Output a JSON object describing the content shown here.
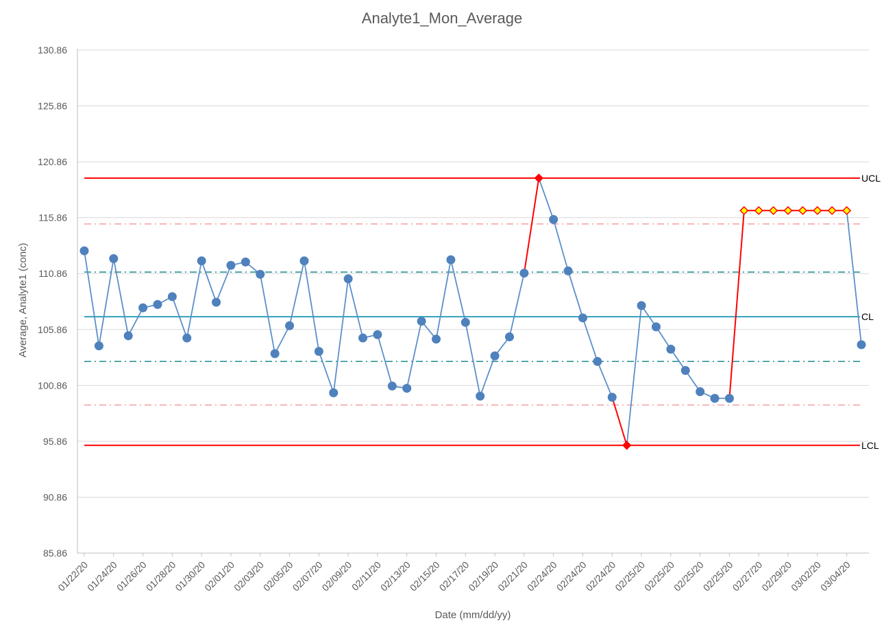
{
  "chart_data": {
    "type": "line",
    "title": "Analyte1_Mon_Average",
    "xlabel": "Date (mm/dd/yy)",
    "ylabel": "Average, Analyte1 (conc)",
    "ylim": [
      85.86,
      130.86
    ],
    "yticks": [
      "85.86",
      "90.86",
      "95.86",
      "100.86",
      "105.86",
      "110.86",
      "115.86",
      "120.86",
      "125.86",
      "130.86"
    ],
    "grid": true,
    "x_tick_labels": [
      "01/22/20",
      "01/24/20",
      "01/26/20",
      "01/28/20",
      "01/30/20",
      "02/01/20",
      "02/03/20",
      "02/05/20",
      "02/07/20",
      "02/09/20",
      "02/11/20",
      "02/13/20",
      "02/15/20",
      "02/17/20",
      "02/19/20",
      "02/21/20",
      "02/24/20",
      "02/24/20",
      "02/24/20",
      "02/25/20",
      "02/25/20",
      "02/25/20",
      "02/25/20",
      "02/27/20",
      "02/29/20",
      "03/02/20",
      "03/04/20"
    ],
    "values": [
      112.9,
      104.4,
      112.2,
      105.3,
      107.8,
      108.1,
      108.8,
      105.1,
      112.0,
      108.3,
      111.6,
      111.9,
      110.8,
      103.7,
      106.2,
      112.0,
      103.9,
      100.2,
      110.4,
      105.1,
      105.4,
      100.8,
      100.6,
      106.6,
      105.0,
      112.1,
      106.5,
      99.9,
      103.5,
      105.2,
      110.9,
      119.4,
      115.7,
      111.1,
      106.9,
      103.0,
      99.8,
      95.5,
      108.0,
      106.1,
      104.1,
      102.2,
      100.3,
      99.7,
      99.7,
      116.5,
      116.5,
      116.5,
      116.5,
      116.5,
      116.5,
      116.5,
      116.5,
      104.5
    ],
    "control_limits": {
      "UCL": {
        "label": "UCL",
        "value": 119.4
      },
      "CL": {
        "label": "CL",
        "value": 107.0
      },
      "LCL": {
        "label": "LCL",
        "value": 95.5
      },
      "upper_2sigma": 111.0,
      "lower_2sigma": 103.0,
      "upper_warning": 115.3,
      "lower_warning": 99.1
    },
    "highlighted_segments": [
      [
        30,
        31
      ],
      [
        36,
        37
      ],
      [
        44,
        45
      ],
      [
        45,
        46
      ],
      [
        46,
        47
      ],
      [
        47,
        48
      ],
      [
        48,
        49
      ],
      [
        49,
        50
      ],
      [
        50,
        51
      ],
      [
        51,
        52
      ]
    ],
    "out_of_control_points": [
      31,
      37
    ],
    "run_rule_points": [
      45,
      46,
      47,
      48,
      49,
      50,
      51,
      52
    ],
    "colors": {
      "series": "#4f81bd",
      "series_line": "#5b8fca",
      "limit": "#ff0000",
      "center": "#31a0b8",
      "two_sigma": "#1a8a8a",
      "warning": "#f4a0a0",
      "grid": "#d9d9d9",
      "violation": "#ff0000",
      "run_fill": "#ffff00",
      "run_stroke": "#ff0000"
    }
  }
}
